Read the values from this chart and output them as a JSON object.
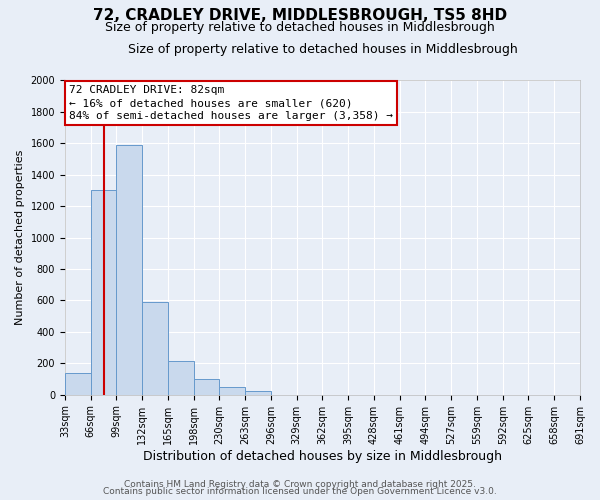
{
  "title": "72, CRADLEY DRIVE, MIDDLESBROUGH, TS5 8HD",
  "subtitle": "Size of property relative to detached houses in Middlesbrough",
  "xlabel": "Distribution of detached houses by size in Middlesbrough",
  "ylabel": "Number of detached properties",
  "bin_labels": [
    "33sqm",
    "66sqm",
    "99sqm",
    "132sqm",
    "165sqm",
    "198sqm",
    "230sqm",
    "263sqm",
    "296sqm",
    "329sqm",
    "362sqm",
    "395sqm",
    "428sqm",
    "461sqm",
    "494sqm",
    "527sqm",
    "559sqm",
    "592sqm",
    "625sqm",
    "658sqm",
    "691sqm"
  ],
  "bar_values": [
    140,
    1300,
    1590,
    590,
    215,
    100,
    50,
    25,
    0,
    0,
    0,
    0,
    0,
    0,
    0,
    0,
    0,
    0,
    0,
    0
  ],
  "bar_color": "#c9d9ed",
  "bar_edge_color": "#6699cc",
  "background_color": "#e8eef7",
  "grid_color": "#ffffff",
  "annotation_line1": "72 CRADLEY DRIVE: 82sqm",
  "annotation_line2": "← 16% of detached houses are smaller (620)",
  "annotation_line3": "84% of semi-detached houses are larger (3,358) →",
  "annotation_box_edge_color": "#cc0000",
  "vline_x": 1.5,
  "vline_color": "#cc0000",
  "ylim": [
    0,
    2000
  ],
  "yticks": [
    0,
    200,
    400,
    600,
    800,
    1000,
    1200,
    1400,
    1600,
    1800,
    2000
  ],
  "footer1": "Contains HM Land Registry data © Crown copyright and database right 2025.",
  "footer2": "Contains public sector information licensed under the Open Government Licence v3.0.",
  "title_fontsize": 11,
  "subtitle_fontsize": 9,
  "xlabel_fontsize": 9,
  "ylabel_fontsize": 8,
  "tick_fontsize": 7,
  "annotation_fontsize": 8,
  "footer_fontsize": 6.5
}
